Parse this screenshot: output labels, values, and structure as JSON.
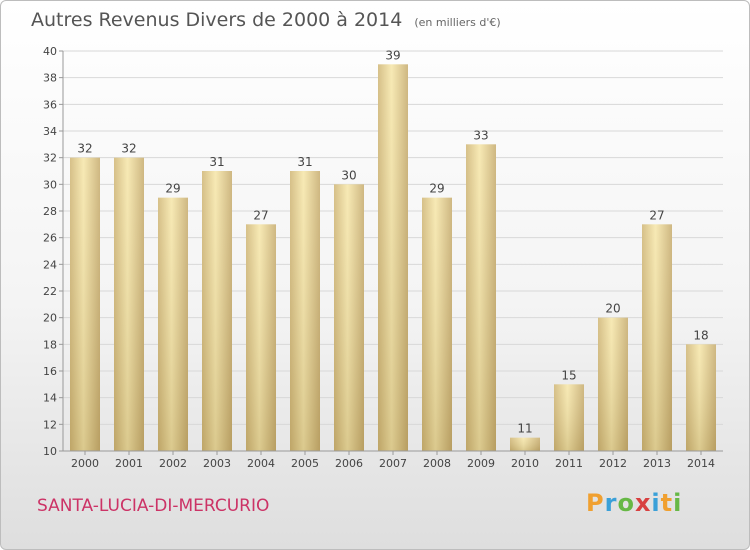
{
  "chart_data": {
    "type": "bar",
    "title": "Autres Revenus Divers de 2000 à 2014",
    "unit": "(en milliers d'€)",
    "categories": [
      "2000",
      "2001",
      "2002",
      "2003",
      "2004",
      "2005",
      "2006",
      "2007",
      "2008",
      "2009",
      "2010",
      "2011",
      "2012",
      "2013",
      "2014"
    ],
    "values": [
      32,
      32,
      29,
      31,
      27,
      31,
      30,
      39,
      29,
      33,
      11,
      15,
      20,
      27,
      18
    ],
    "ylim": [
      10,
      40
    ],
    "yticks": [
      10,
      12,
      14,
      16,
      18,
      20,
      22,
      24,
      26,
      28,
      30,
      32,
      34,
      36,
      38,
      40
    ],
    "grid": true,
    "xlabel": "",
    "ylabel": ""
  },
  "footer": {
    "place": "SANTA-LUCIA-DI-MERCURIO",
    "logo": {
      "p": "P",
      "r": "r",
      "o": "o",
      "x": "x",
      "i1": "i",
      "t": "t",
      "i2": "i"
    }
  },
  "colors": {
    "bar_light": "#f7e6a6",
    "bar_dark": "#d9c48a",
    "grid": "#d8d8d8",
    "text": "#444444",
    "place": "#cc3366"
  }
}
